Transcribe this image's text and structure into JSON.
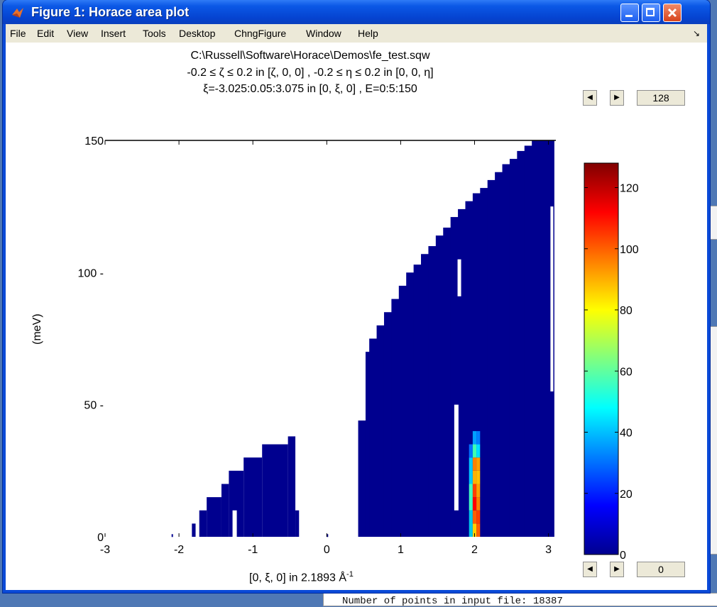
{
  "window": {
    "title": "Figure 1: Horace area plot"
  },
  "menu": {
    "items": [
      "File",
      "Edit",
      "View",
      "Insert",
      "Tools",
      "Desktop",
      "ChngFigure",
      "Window",
      "Help"
    ]
  },
  "background": {
    "console_text": "Number of points in input file: 18387"
  },
  "chart_data": {
    "type": "heatmap",
    "title": [
      "C:\\Russell\\Software\\Horace\\Demos\\fe_test.sqw",
      "-0.2 ≤ ζ ≤ 0.2 in [ζ, 0, 0] , -0.2 ≤ η ≤ 0.2 in [0, 0, η]",
      "ξ=-3.025:0.05:3.075 in [0, ξ, 0] , E=0:5:150"
    ],
    "xlabel": "[0, ξ, 0] in 2.1893 Å",
    "xlabel_sup": "-1",
    "ylabel": "(meV)",
    "xlim": [
      -3,
      3.1
    ],
    "ylim": [
      0,
      150
    ],
    "xticks": [
      "-3",
      "-2",
      "-1",
      "0",
      "1",
      "2",
      "3"
    ],
    "yticks": [
      "0",
      "50 -",
      "100 -",
      "150"
    ],
    "colorbar": {
      "range": [
        0,
        128
      ],
      "ticks": [
        "0",
        "20",
        "40",
        "60",
        "80",
        "100",
        "120"
      ],
      "colormap": "jet"
    },
    "grid": false
  },
  "controls": {
    "cmax_value": "128",
    "cmin_value": "0"
  }
}
